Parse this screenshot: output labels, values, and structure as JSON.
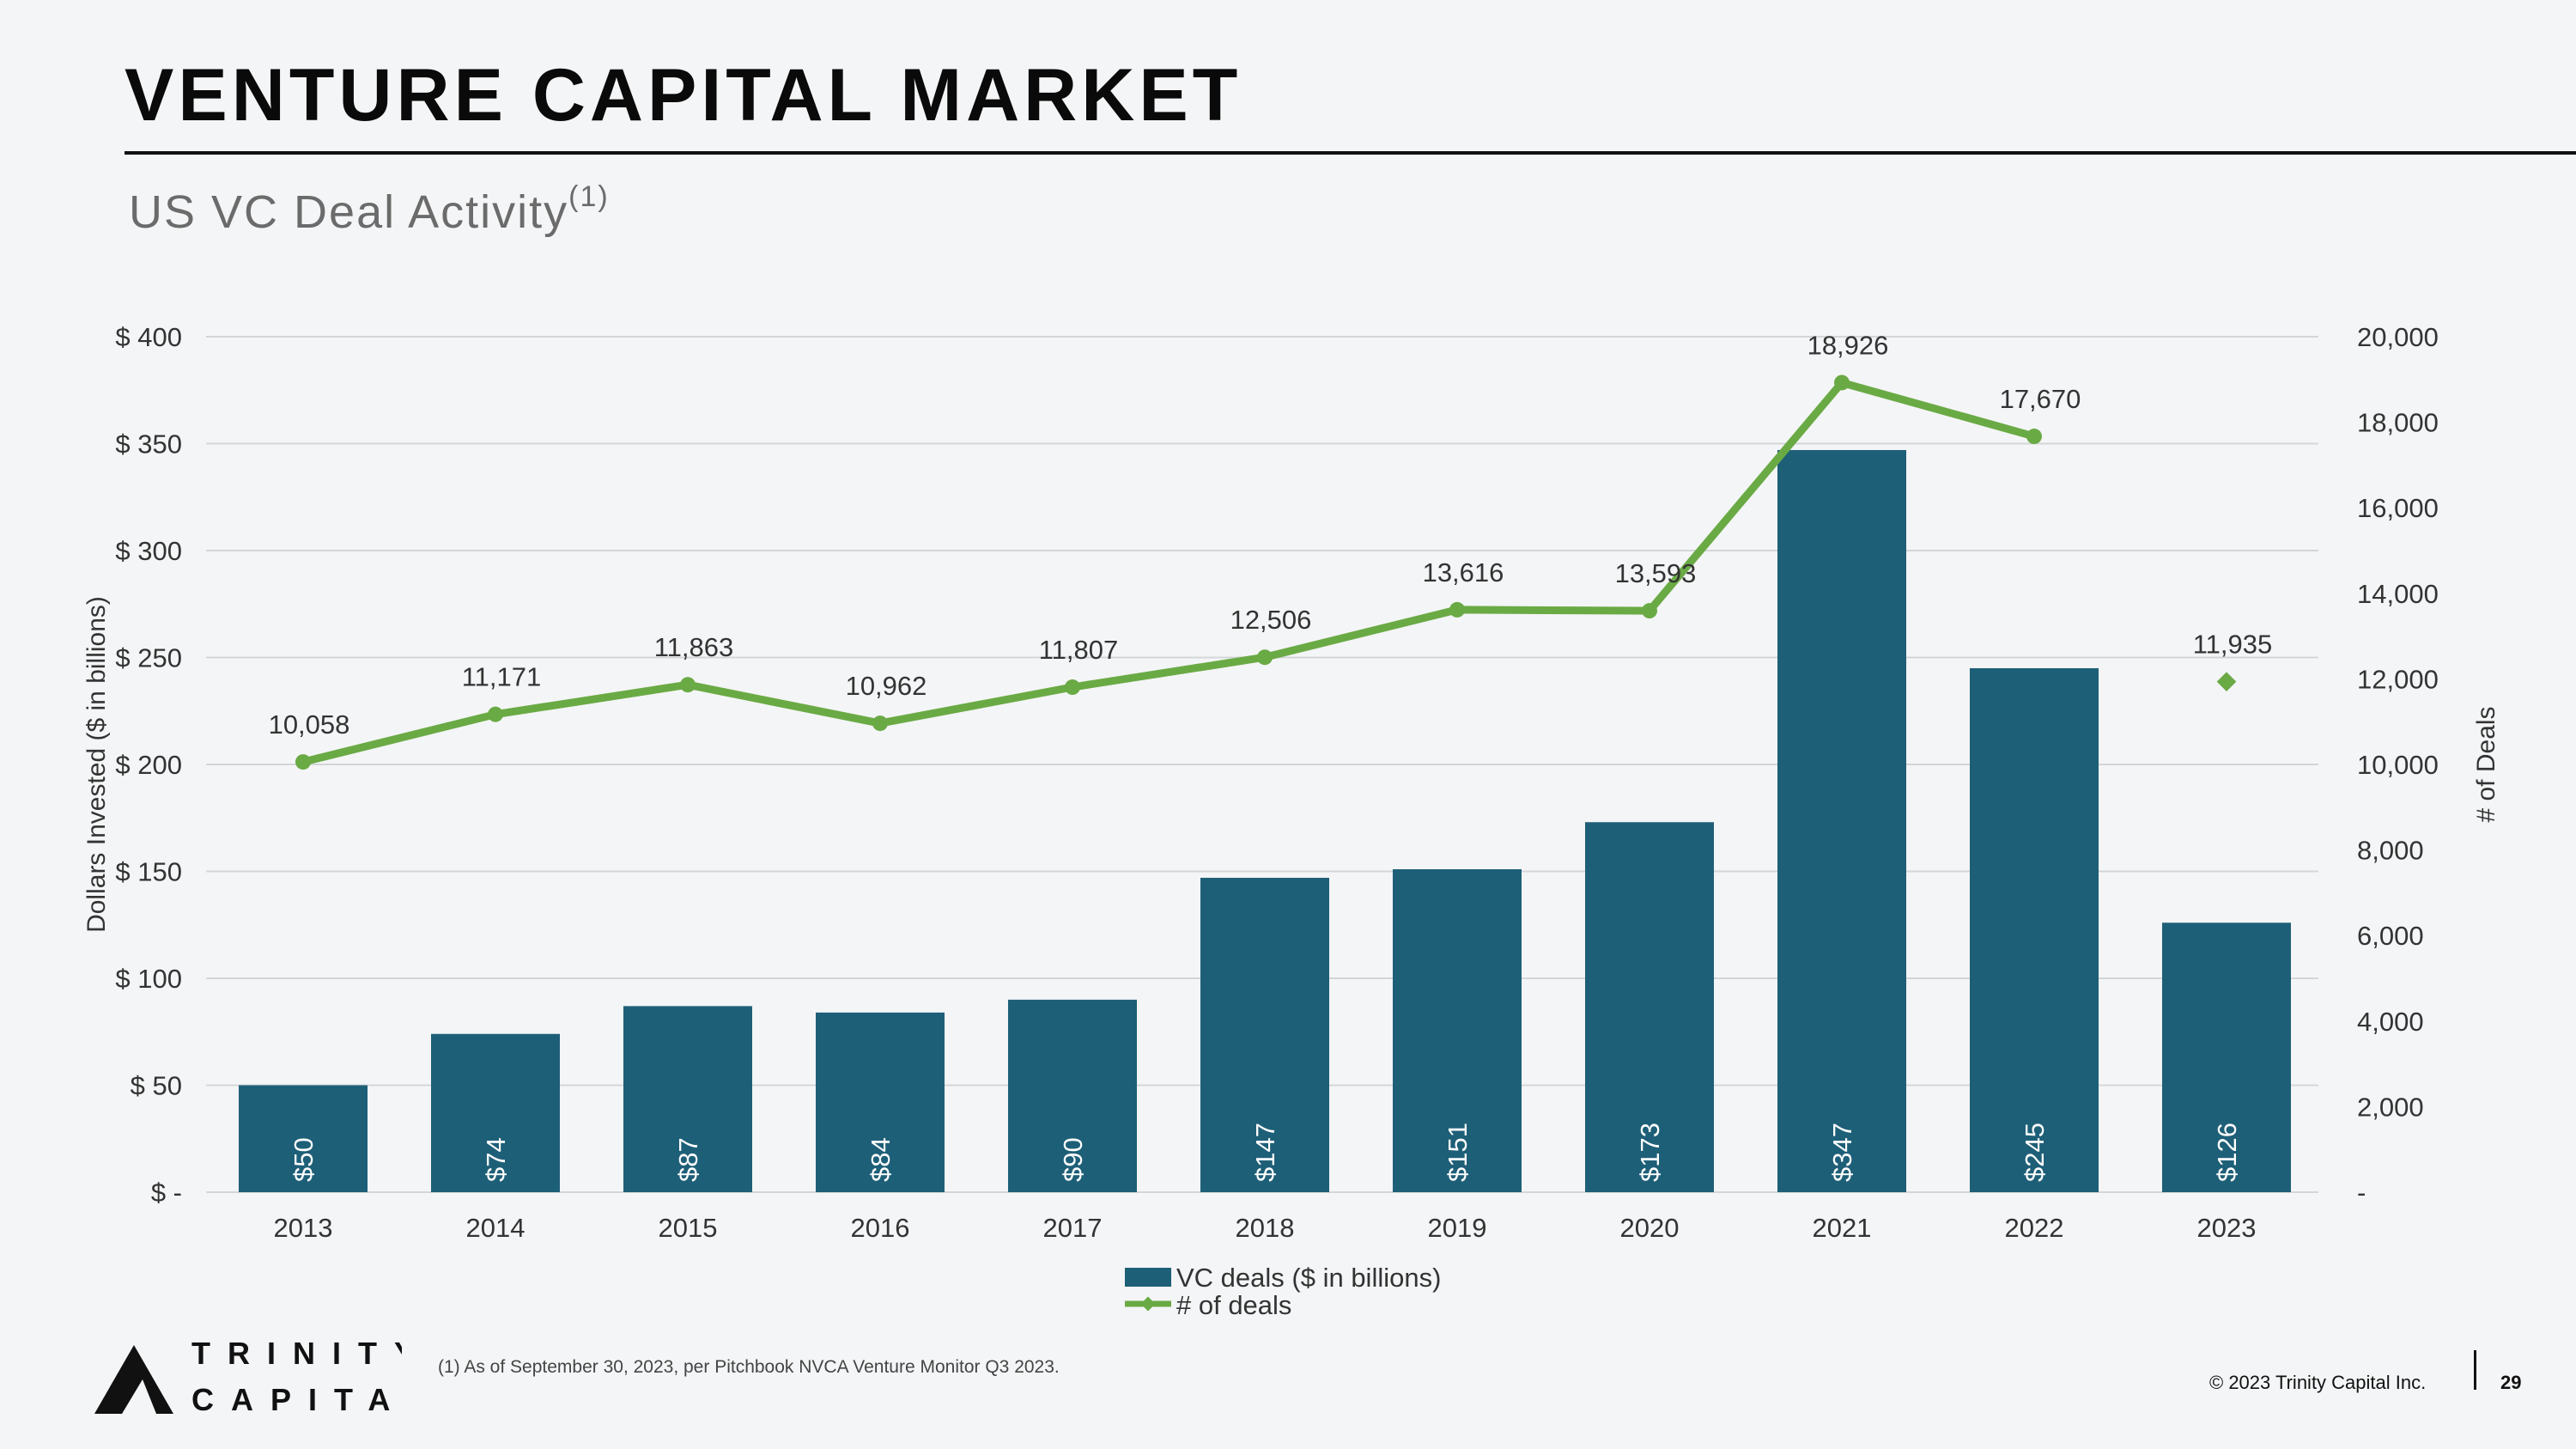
{
  "slide": {
    "title": "VENTURE CAPITAL MARKET",
    "subtitle": "US VC Deal Activity",
    "subtitle_sup": "(1)",
    "footnote": "(1)    As of September 30, 2023, per Pitchbook NVCA Venture Monitor Q3 2023.",
    "copyright": "© 2023 Trinity Capital Inc.",
    "page_number": "29",
    "logo_line1": "TRINITY",
    "logo_line2": "CAPITAL"
  },
  "colors": {
    "bar": "#1e5f78",
    "line": "#6aaa45",
    "grid": "#d3d6d8",
    "axis_text": "#333333"
  },
  "chart_data": {
    "type": "bar",
    "categories": [
      "2013",
      "2014",
      "2015",
      "2016",
      "2017",
      "2018",
      "2019",
      "2020",
      "2021",
      "2022",
      "2023"
    ],
    "series": [
      {
        "name": "VC deals ($ in billions)",
        "type": "bar",
        "axis": "left",
        "values": [
          50,
          74,
          87,
          84,
          90,
          147,
          151,
          173,
          347,
          245,
          126
        ],
        "labels": [
          "$50",
          "$74",
          "$87",
          "$84",
          "$90",
          "$147",
          "$151",
          "$173",
          "$347",
          "$245",
          "$126"
        ]
      },
      {
        "name": "# of deals",
        "type": "line",
        "axis": "right",
        "values": [
          10058,
          11171,
          11863,
          10962,
          11807,
          12506,
          13616,
          13593,
          18926,
          17670,
          11935
        ],
        "labels": [
          "10,058",
          "11,171",
          "11,863",
          "10,962",
          "11,807",
          "12,506",
          "13,616",
          "13,593",
          "18,926",
          "17,670",
          "11,935"
        ],
        "line_break_before_index": 10
      }
    ],
    "ylabel": "Dollars Invested ($ in billions)",
    "y2label": "# of Deals",
    "ylim": [
      0,
      400
    ],
    "y2lim": [
      0,
      20000
    ],
    "yticks": [
      "$ -",
      "$ 50",
      "$ 100",
      "$ 150",
      "$ 200",
      "$ 250",
      "$ 300",
      "$ 350",
      "$ 400"
    ],
    "y2ticks": [
      "-",
      "2,000",
      "4,000",
      "6,000",
      "8,000",
      "10,000",
      "12,000",
      "14,000",
      "16,000",
      "18,000",
      "20,000"
    ],
    "grid": true,
    "legend": "bottom-center"
  }
}
